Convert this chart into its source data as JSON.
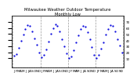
{
  "title": "Milwaukee Weather Outdoor Temperature\nMonthly Low",
  "months_labels": [
    "J",
    "F",
    "M",
    "A",
    "M",
    "J",
    "J",
    "A",
    "S",
    "O",
    "N",
    "D"
  ],
  "values": [
    14,
    17,
    27,
    39,
    49,
    59,
    65,
    63,
    55,
    43,
    32,
    20,
    12,
    15,
    25,
    38,
    50,
    60,
    66,
    64,
    54,
    42,
    30,
    18,
    10,
    13,
    23,
    36,
    48,
    58,
    64,
    62,
    53,
    41,
    29,
    16,
    11,
    16,
    26,
    37,
    49,
    59,
    65,
    63,
    54,
    42,
    31,
    19
  ],
  "n_years": 4,
  "ylim": [
    -5,
    80
  ],
  "yticks": [
    10,
    20,
    30,
    40,
    50,
    60,
    70
  ],
  "ytick_labels": [
    "",
    "",
    "",
    "",
    "",
    "",
    ""
  ],
  "line_color": "#0000dd",
  "marker_size": 1.5,
  "grid_color": "#999999",
  "bg_color": "#ffffff",
  "title_fontsize": 3.8,
  "tick_fontsize": 3.0
}
